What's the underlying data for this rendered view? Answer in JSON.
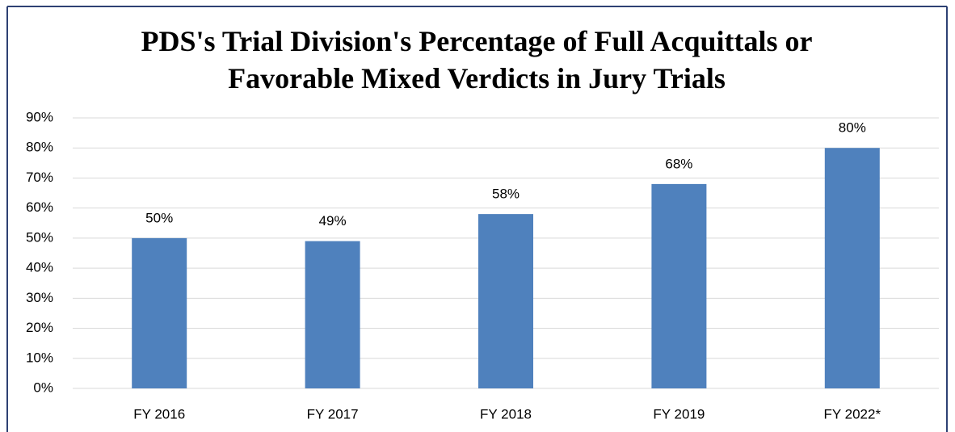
{
  "chart_data": {
    "type": "bar",
    "title": "PDS's Trial Division's Percentage of Full Acquittals or Favorable Mixed Verdicts in Jury Trials",
    "categories": [
      "FY 2016",
      "FY 2017",
      "FY 2018",
      "FY 2019",
      "FY 2022*"
    ],
    "values": [
      50,
      49,
      58,
      68,
      80
    ],
    "value_labels": [
      "50%",
      "49%",
      "58%",
      "68%",
      "80%"
    ],
    "color": "#4f81bd",
    "ylim": [
      0,
      90
    ],
    "yticks": [
      {
        "value": 0,
        "label": "0%"
      },
      {
        "value": 10,
        "label": "10%"
      },
      {
        "value": 20,
        "label": "20%"
      },
      {
        "value": 30,
        "label": "30%"
      },
      {
        "value": 40,
        "label": "40%"
      },
      {
        "value": 50,
        "label": "50%"
      },
      {
        "value": 60,
        "label": "60%"
      },
      {
        "value": 70,
        "label": "70%"
      },
      {
        "value": 80,
        "label": "80%"
      },
      {
        "value": 90,
        "label": "90%"
      }
    ],
    "grid": true
  }
}
